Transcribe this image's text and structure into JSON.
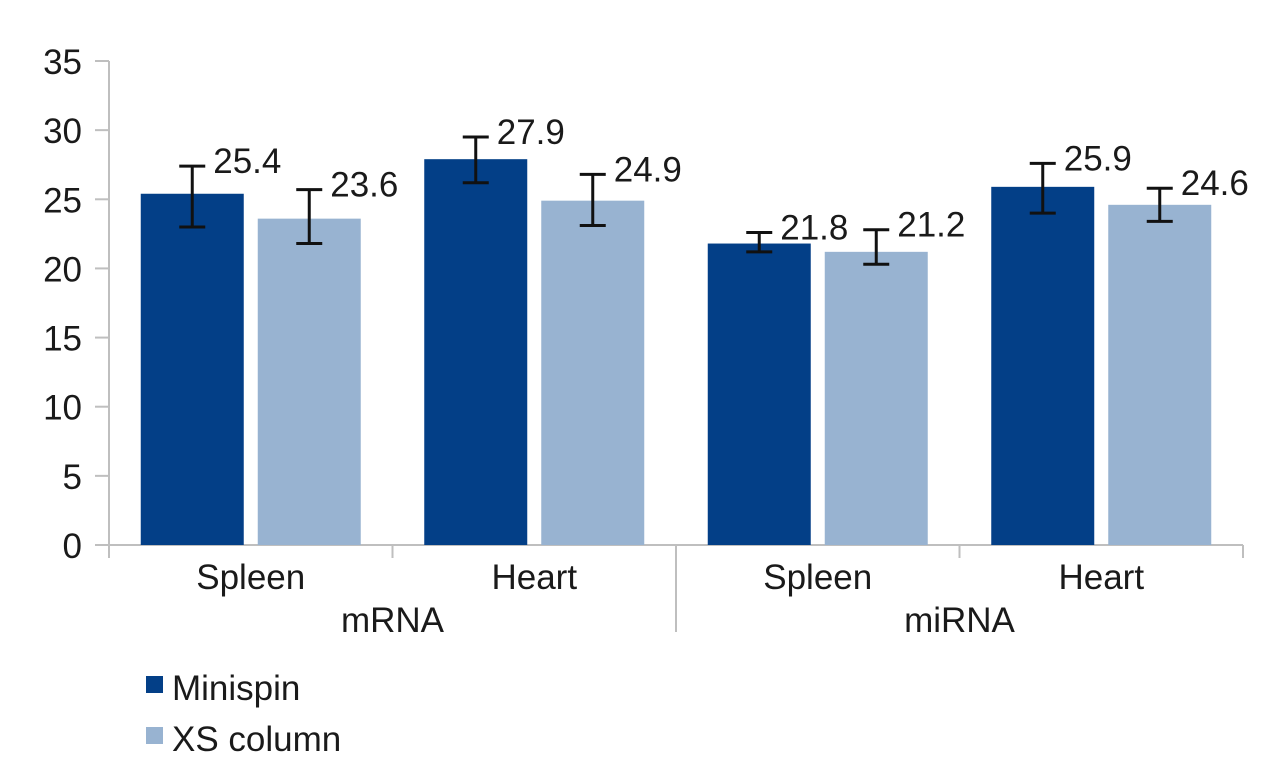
{
  "chart_data": {
    "type": "bar",
    "title": "",
    "xlabel": "",
    "ylabel": "",
    "ylim": [
      0,
      35
    ],
    "yticks": [
      0,
      5,
      10,
      15,
      20,
      25,
      30,
      35
    ],
    "grid": false,
    "legend_position": "bottom-left",
    "groups": [
      {
        "label": "mRNA",
        "categories": [
          "Spleen",
          "Heart"
        ]
      },
      {
        "label": "miRNA",
        "categories": [
          "Spleen",
          "Heart"
        ]
      }
    ],
    "categories": [
      "Spleen",
      "Heart",
      "Spleen",
      "Heart"
    ],
    "series": [
      {
        "name": "Minispin",
        "color": "#033f87",
        "values": [
          25.4,
          27.9,
          21.8,
          25.9
        ],
        "labels": [
          "25.4",
          "27.9",
          "21.8",
          "25.9"
        ],
        "error_low": [
          23.0,
          26.2,
          21.2,
          24.0
        ],
        "error_high": [
          27.4,
          29.5,
          22.6,
          27.6
        ]
      },
      {
        "name": "XS column",
        "color": "#98b3d1",
        "values": [
          23.6,
          24.9,
          21.2,
          24.6
        ],
        "labels": [
          "23.6",
          "24.9",
          "21.2",
          "24.6"
        ],
        "error_low": [
          21.8,
          23.1,
          20.3,
          23.4
        ],
        "error_high": [
          25.7,
          26.8,
          22.8,
          25.8
        ]
      }
    ]
  }
}
